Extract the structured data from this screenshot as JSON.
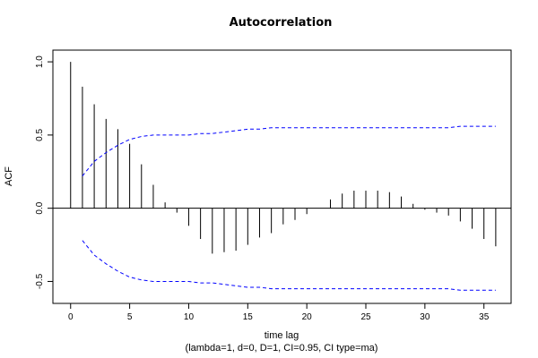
{
  "chart_data": {
    "type": "bar",
    "title": "Autocorrelation",
    "xlabel": "time lag",
    "subtitle": "(lambda=1, d=0, D=1, CI=0.95, CI type=ma)",
    "ylabel": "ACF",
    "xlim": [
      -1.5,
      37.3
    ],
    "ylim": [
      -0.65,
      1.08
    ],
    "x_ticks": [
      0,
      5,
      10,
      15,
      20,
      25,
      30,
      35
    ],
    "y_ticks": [
      -0.5,
      0.0,
      0.5,
      1.0
    ],
    "y_tick_labels": [
      "-0.5",
      "0.0",
      "0.5",
      "1.0"
    ],
    "grid": false,
    "lags": [
      0,
      1,
      2,
      3,
      4,
      5,
      6,
      7,
      8,
      9,
      10,
      11,
      12,
      13,
      14,
      15,
      16,
      17,
      18,
      19,
      20,
      21,
      22,
      23,
      24,
      25,
      26,
      27,
      28,
      29,
      30,
      31,
      32,
      33,
      34,
      35,
      36
    ],
    "acf": [
      1.0,
      0.83,
      0.71,
      0.61,
      0.54,
      0.44,
      0.3,
      0.16,
      0.04,
      -0.03,
      -0.12,
      -0.21,
      -0.31,
      -0.3,
      -0.29,
      -0.25,
      -0.2,
      -0.17,
      -0.11,
      -0.08,
      -0.04,
      0.0,
      0.06,
      0.1,
      0.12,
      0.12,
      0.12,
      0.11,
      0.08,
      0.03,
      -0.01,
      -0.03,
      -0.05,
      -0.09,
      -0.14,
      -0.21,
      -0.26
    ],
    "ci_upper": {
      "x": [
        1,
        2,
        3,
        4,
        5,
        6,
        7,
        8,
        9,
        10,
        11,
        12,
        13,
        14,
        15,
        16,
        17,
        18,
        19,
        20,
        21,
        22,
        23,
        24,
        25,
        26,
        27,
        28,
        29,
        30,
        31,
        32,
        33,
        34,
        35,
        36
      ],
      "y": [
        0.22,
        0.32,
        0.38,
        0.43,
        0.47,
        0.49,
        0.5,
        0.5,
        0.5,
        0.5,
        0.51,
        0.51,
        0.52,
        0.53,
        0.54,
        0.54,
        0.55,
        0.55,
        0.55,
        0.55,
        0.55,
        0.55,
        0.55,
        0.55,
        0.55,
        0.55,
        0.55,
        0.55,
        0.55,
        0.55,
        0.55,
        0.55,
        0.56,
        0.56,
        0.56,
        0.56
      ]
    },
    "ci_lower": {
      "x": [
        1,
        2,
        3,
        4,
        5,
        6,
        7,
        8,
        9,
        10,
        11,
        12,
        13,
        14,
        15,
        16,
        17,
        18,
        19,
        20,
        21,
        22,
        23,
        24,
        25,
        26,
        27,
        28,
        29,
        30,
        31,
        32,
        33,
        34,
        35,
        36
      ],
      "y": [
        -0.22,
        -0.32,
        -0.38,
        -0.43,
        -0.47,
        -0.49,
        -0.5,
        -0.5,
        -0.5,
        -0.5,
        -0.51,
        -0.51,
        -0.52,
        -0.53,
        -0.54,
        -0.54,
        -0.55,
        -0.55,
        -0.55,
        -0.55,
        -0.55,
        -0.55,
        -0.55,
        -0.55,
        -0.55,
        -0.55,
        -0.55,
        -0.55,
        -0.55,
        -0.55,
        -0.55,
        -0.55,
        -0.56,
        -0.56,
        -0.56,
        -0.56
      ]
    },
    "colors": {
      "bars": "#000000",
      "ci": "#0000ff"
    }
  }
}
